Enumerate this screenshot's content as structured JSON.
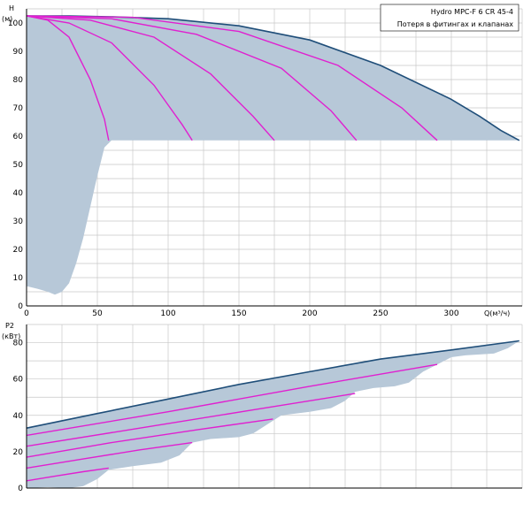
{
  "colors": {
    "background": "#ffffff",
    "grid": "#c8c8c8",
    "axis": "#000000",
    "envelope_fill": "#b7c8d8",
    "envelope_edge": "#1f4e79",
    "series_line": "#e020d0"
  },
  "legend": {
    "title": "Hydro MPC-F 6 CR 45-4",
    "subtitle": "Потеря в фитингах и клапанах"
  },
  "chart_data": [
    {
      "type": "line",
      "ylabel": "H",
      "yunit": "(м)",
      "xlabel": "Q(м³/ч)",
      "xlim": [
        0,
        350
      ],
      "ylim": [
        0,
        105
      ],
      "xticks": [
        0,
        50,
        100,
        150,
        200,
        250,
        300
      ],
      "yticks": [
        0,
        10,
        20,
        30,
        40,
        50,
        60,
        70,
        80,
        90,
        100
      ],
      "grid": true,
      "legend_position": "top-right",
      "envelope": {
        "upper": [
          [
            0,
            102.5
          ],
          [
            30,
            102.5
          ],
          [
            60,
            102.2
          ],
          [
            100,
            101.5
          ],
          [
            150,
            99
          ],
          [
            200,
            94
          ],
          [
            250,
            85
          ],
          [
            300,
            73
          ],
          [
            320,
            67
          ],
          [
            335,
            62
          ],
          [
            348,
            58.5
          ]
        ],
        "lower": [
          [
            348,
            58.5
          ],
          [
            300,
            58.5
          ],
          [
            250,
            58.5
          ],
          [
            200,
            58.5
          ],
          [
            150,
            58.5
          ],
          [
            100,
            58.5
          ],
          [
            60,
            58.5
          ],
          [
            55,
            56
          ],
          [
            50,
            46
          ],
          [
            45,
            35
          ],
          [
            40,
            24
          ],
          [
            35,
            15
          ],
          [
            30,
            8
          ],
          [
            25,
            5
          ],
          [
            20,
            4
          ],
          [
            15,
            5
          ],
          [
            8,
            6
          ],
          [
            0,
            7
          ]
        ]
      },
      "series": [
        {
          "values": [
            [
              0,
              102.5
            ],
            [
              15,
              101
            ],
            [
              30,
              95
            ],
            [
              45,
              80
            ],
            [
              55,
              66
            ],
            [
              58,
              58.5
            ]
          ]
        },
        {
          "values": [
            [
              0,
              102.5
            ],
            [
              30,
              100
            ],
            [
              60,
              93
            ],
            [
              90,
              78
            ],
            [
              110,
              64
            ],
            [
              117,
              58.5
            ]
          ]
        },
        {
          "values": [
            [
              0,
              102.5
            ],
            [
              45,
              101
            ],
            [
              90,
              95
            ],
            [
              130,
              82
            ],
            [
              160,
              67
            ],
            [
              175,
              58.5
            ]
          ]
        },
        {
          "values": [
            [
              0,
              102.5
            ],
            [
              60,
              101.5
            ],
            [
              120,
              96
            ],
            [
              180,
              84
            ],
            [
              215,
              69
            ],
            [
              233,
              58.5
            ]
          ]
        },
        {
          "values": [
            [
              0,
              102.5
            ],
            [
              75,
              102
            ],
            [
              150,
              97
            ],
            [
              220,
              85
            ],
            [
              265,
              70
            ],
            [
              290,
              58.5
            ]
          ]
        }
      ]
    },
    {
      "type": "line",
      "ylabel": "P2",
      "yunit": "(кВт)",
      "xlim": [
        0,
        350
      ],
      "ylim": [
        0,
        90
      ],
      "yticks": [
        0,
        20,
        40,
        60,
        80
      ],
      "grid": true,
      "envelope": {
        "upper": [
          [
            0,
            33
          ],
          [
            50,
            41
          ],
          [
            100,
            49
          ],
          [
            150,
            57
          ],
          [
            200,
            64
          ],
          [
            250,
            71
          ],
          [
            300,
            76
          ],
          [
            348,
            81
          ]
        ],
        "lower": [
          [
            348,
            81
          ],
          [
            340,
            77
          ],
          [
            330,
            74
          ],
          [
            310,
            73
          ],
          [
            300,
            72
          ],
          [
            290,
            68
          ],
          [
            280,
            64
          ],
          [
            270,
            58
          ],
          [
            260,
            56
          ],
          [
            245,
            55
          ],
          [
            232,
            53
          ],
          [
            225,
            48
          ],
          [
            215,
            44
          ],
          [
            200,
            42
          ],
          [
            180,
            40
          ],
          [
            174,
            37
          ],
          [
            160,
            30
          ],
          [
            150,
            28
          ],
          [
            130,
            27
          ],
          [
            117,
            25
          ],
          [
            108,
            18
          ],
          [
            95,
            14
          ],
          [
            75,
            12
          ],
          [
            58,
            10
          ],
          [
            50,
            5
          ],
          [
            40,
            1
          ],
          [
            30,
            0
          ],
          [
            15,
            0.5
          ],
          [
            0,
            0
          ]
        ]
      },
      "series": [
        {
          "values": [
            [
              0,
              4
            ],
            [
              20,
              6.5
            ],
            [
              40,
              9
            ],
            [
              58,
              11
            ]
          ]
        },
        {
          "values": [
            [
              0,
              11
            ],
            [
              40,
              16
            ],
            [
              80,
              21
            ],
            [
              117,
              25
            ]
          ]
        },
        {
          "values": [
            [
              0,
              17
            ],
            [
              60,
              25
            ],
            [
              120,
              32
            ],
            [
              174,
              38
            ]
          ]
        },
        {
          "values": [
            [
              0,
              23
            ],
            [
              80,
              33
            ],
            [
              160,
              43
            ],
            [
              232,
              52
            ]
          ]
        },
        {
          "values": [
            [
              0,
              29
            ],
            [
              100,
              42
            ],
            [
              200,
              56
            ],
            [
              290,
              68
            ]
          ]
        }
      ]
    }
  ]
}
